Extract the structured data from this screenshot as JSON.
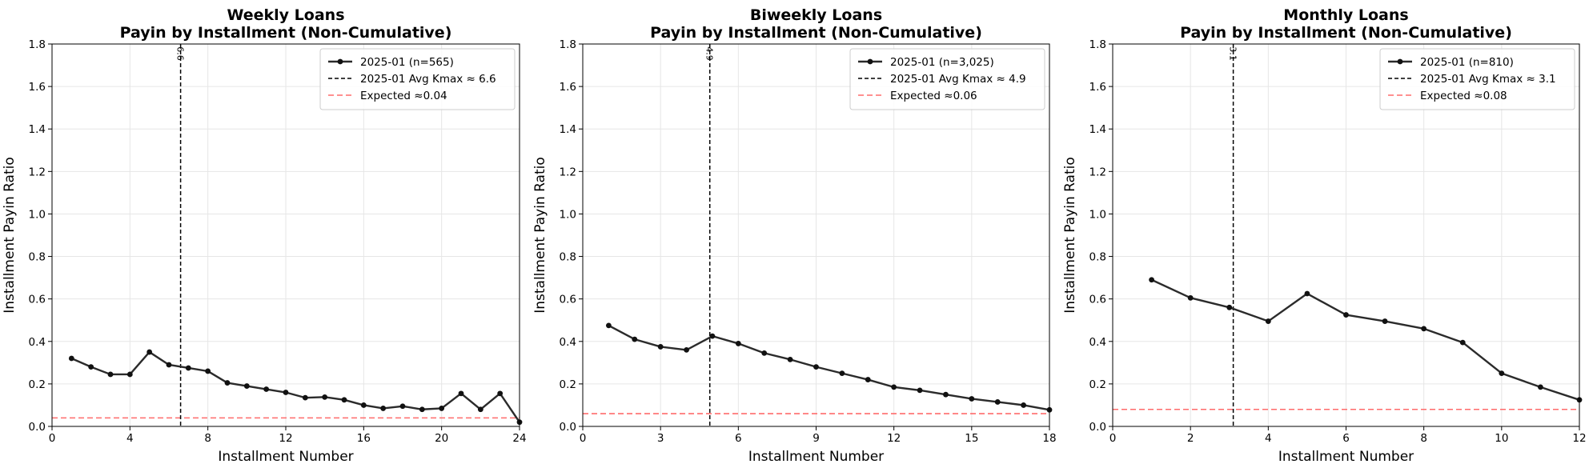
{
  "chart_data": [
    {
      "type": "line",
      "title": "Weekly Loans\nPayin by Installment (Non-Cumulative)",
      "xlabel": "Installment Number",
      "ylabel": "Installment Payin Ratio",
      "xlim": [
        0,
        24
      ],
      "ylim": [
        0,
        1.8
      ],
      "xticks": [
        0,
        4,
        8,
        12,
        16,
        20,
        24
      ],
      "yticks": [
        0.0,
        0.2,
        0.4,
        0.6,
        0.8,
        1.0,
        1.2,
        1.4,
        1.6,
        1.8
      ],
      "grid": true,
      "legend_position": "top-right",
      "series": [
        {
          "name": "2025-01 (n=565)",
          "x": [
            1,
            2,
            3,
            4,
            5,
            6,
            7,
            8,
            9,
            10,
            11,
            12,
            13,
            14,
            15,
            16,
            17,
            18,
            19,
            20,
            21,
            22,
            23,
            24
          ],
          "y": [
            0.32,
            0.28,
            0.245,
            0.245,
            0.35,
            0.29,
            0.275,
            0.26,
            0.205,
            0.19,
            0.175,
            0.16,
            0.135,
            0.138,
            0.125,
            0.1,
            0.085,
            0.095,
            0.08,
            0.085,
            0.155,
            0.08,
            0.155,
            0.02
          ]
        }
      ],
      "kmax": {
        "name": "2025-01 Avg Kmax ≈ 6.6",
        "value": 6.6,
        "label": "6.6"
      },
      "expected": {
        "name": "Expected ≈0.04",
        "value": 0.04
      }
    },
    {
      "type": "line",
      "title": "Biweekly Loans\nPayin by Installment (Non-Cumulative)",
      "xlabel": "Installment Number",
      "ylabel": "Installment Payin Ratio",
      "xlim": [
        0,
        18
      ],
      "ylim": [
        0,
        1.8
      ],
      "xticks": [
        0,
        3,
        6,
        9,
        12,
        15,
        18
      ],
      "yticks": [
        0.0,
        0.2,
        0.4,
        0.6,
        0.8,
        1.0,
        1.2,
        1.4,
        1.6,
        1.8
      ],
      "grid": true,
      "legend_position": "top-right",
      "series": [
        {
          "name": "2025-01 (n=3,025)",
          "x": [
            1,
            2,
            3,
            4,
            5,
            6,
            7,
            8,
            9,
            10,
            11,
            12,
            13,
            14,
            15,
            16,
            17,
            18
          ],
          "y": [
            0.475,
            0.41,
            0.375,
            0.36,
            0.425,
            0.39,
            0.345,
            0.315,
            0.28,
            0.25,
            0.22,
            0.185,
            0.17,
            0.15,
            0.13,
            0.115,
            0.1,
            0.078
          ]
        }
      ],
      "kmax": {
        "name": "2025-01 Avg Kmax ≈ 4.9",
        "value": 4.9,
        "label": "4.9"
      },
      "expected": {
        "name": "Expected ≈0.06",
        "value": 0.06
      }
    },
    {
      "type": "line",
      "title": "Monthly Loans\nPayin by Installment (Non-Cumulative)",
      "xlabel": "Installment Number",
      "ylabel": "Installment Payin Ratio",
      "xlim": [
        0,
        12
      ],
      "ylim": [
        0,
        1.8
      ],
      "xticks": [
        0,
        2,
        4,
        6,
        8,
        10,
        12
      ],
      "yticks": [
        0.0,
        0.2,
        0.4,
        0.6,
        0.8,
        1.0,
        1.2,
        1.4,
        1.6,
        1.8
      ],
      "grid": true,
      "legend_position": "top-right",
      "series": [
        {
          "name": "2025-01 (n=810)",
          "x": [
            1,
            2,
            3,
            4,
            5,
            6,
            7,
            8,
            9,
            10,
            11,
            12
          ],
          "y": [
            0.69,
            0.605,
            0.56,
            0.495,
            0.625,
            0.525,
            0.495,
            0.46,
            0.395,
            0.25,
            0.185,
            0.125
          ]
        }
      ],
      "kmax": {
        "name": "2025-01 Avg Kmax ≈ 3.1",
        "value": 3.1,
        "label": "3.1"
      },
      "expected": {
        "name": "Expected ≈0.08",
        "value": 0.08
      }
    }
  ],
  "colors": {
    "series_line": "#2b2b2b",
    "series_marker": "#111111",
    "kmax_line": "#000000",
    "expected_line": "#ff6b6b",
    "grid": "#e6e6e6",
    "axis": "#000000"
  }
}
